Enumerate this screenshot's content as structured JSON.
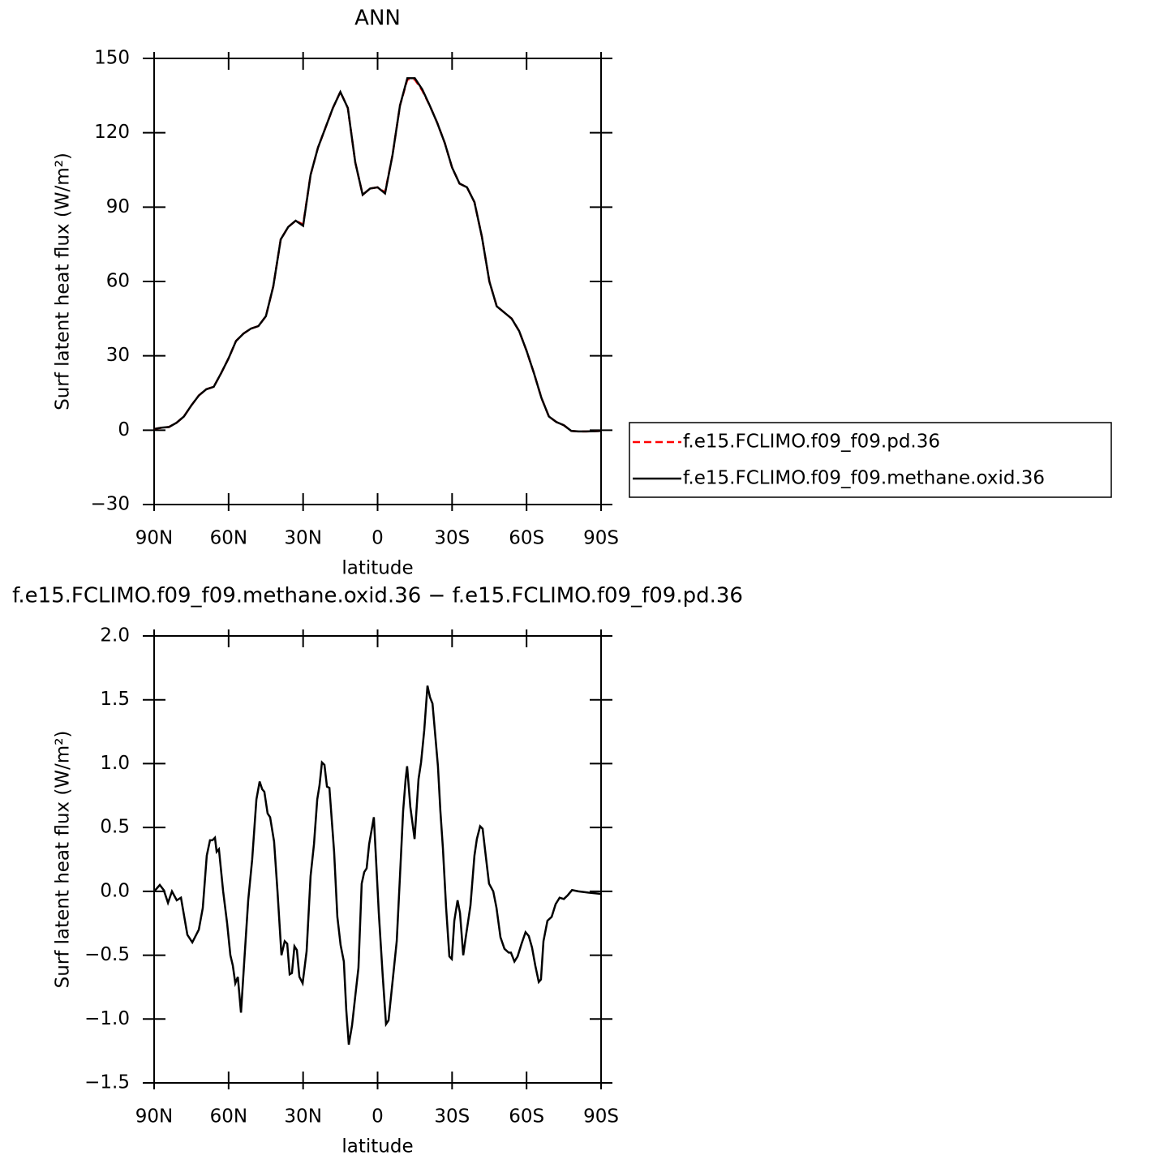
{
  "chart_data": [
    {
      "type": "line",
      "title": "ANN",
      "xlabel": "latitude",
      "ylabel": "Surf latent heat flux (W/m²)",
      "xlim": [
        90,
        -90
      ],
      "xticks": [
        {
          "value": 90,
          "label": "90N"
        },
        {
          "value": 60,
          "label": "60N"
        },
        {
          "value": 30,
          "label": "30N"
        },
        0,
        {
          "value": -30,
          "label": "30S"
        },
        {
          "value": -60,
          "label": "60S"
        },
        {
          "value": -90,
          "label": "90S"
        }
      ],
      "ylim": [
        -30,
        150
      ],
      "yticks": [
        {
          "value": -30,
          "label": "−30"
        },
        0,
        30,
        60,
        90,
        120,
        150
      ],
      "legend": "right",
      "x": [
        90,
        87,
        84,
        81,
        78,
        75,
        72,
        69,
        66,
        63,
        60,
        57,
        54,
        51,
        48,
        45,
        42,
        39,
        36,
        33,
        30,
        27,
        24,
        21,
        18,
        15,
        12,
        9,
        6,
        3,
        0,
        -3,
        -6,
        -9,
        -12,
        -15,
        -18,
        -21,
        -24,
        -27,
        -30,
        -33,
        -36,
        -39,
        -42,
        -45,
        -48,
        -51,
        -54,
        -57,
        -60,
        -63,
        -66,
        -69,
        -72,
        -75,
        -78,
        -81,
        -84,
        -87,
        -90
      ],
      "series": [
        {
          "name": "f.e15.FCLIMO.f09_f09.pd.36",
          "color": "#ff0000",
          "dashed": true,
          "values": [
            0.5,
            1,
            1.3,
            3,
            5.5,
            10,
            14,
            16.5,
            17.5,
            23,
            29,
            36,
            39,
            41,
            42,
            46,
            58,
            77,
            82,
            84.5,
            83,
            103,
            114,
            122,
            130,
            136.5,
            130,
            108,
            95,
            97.5,
            98,
            96,
            111,
            131,
            141.5,
            141.5,
            137,
            131,
            124,
            116,
            106,
            99.5,
            98,
            92,
            78,
            60,
            50,
            47.5,
            45,
            40,
            32,
            23,
            13,
            5.5,
            3.3,
            2,
            -0.3,
            -0.5,
            -0.5,
            -0.4,
            -0.3
          ]
        },
        {
          "name": "f.e15.FCLIMO.f09_f09.methane.oxid.36",
          "color": "#000000",
          "dashed": false,
          "values": [
            0.5,
            1,
            1.3,
            3,
            5.5,
            10,
            14,
            16.5,
            17.5,
            23,
            29,
            36,
            39,
            41,
            42,
            46,
            58,
            77,
            82,
            84.5,
            82.5,
            103,
            114,
            122,
            130,
            136.5,
            130,
            108,
            95,
            97.5,
            98,
            95.5,
            111,
            131,
            142,
            142,
            137.5,
            131,
            124,
            116,
            106,
            99.5,
            98,
            92,
            78,
            60,
            50,
            47.5,
            45,
            40,
            32,
            23,
            13,
            5.5,
            3.3,
            2,
            -0.3,
            -0.5,
            -0.5,
            -0.4,
            -0.3
          ]
        }
      ]
    },
    {
      "type": "line",
      "title": "f.e15.FCLIMO.f09_f09.methane.oxid.36 − f.e15.FCLIMO.f09_f09.pd.36",
      "xlabel": "latitude",
      "ylabel": "Surf latent heat flux (W/m²)",
      "xlim": [
        90,
        -90
      ],
      "xticks": [
        {
          "value": 90,
          "label": "90N"
        },
        {
          "value": 60,
          "label": "60N"
        },
        {
          "value": 30,
          "label": "30N"
        },
        0,
        {
          "value": -30,
          "label": "30S"
        },
        {
          "value": -60,
          "label": "60S"
        },
        {
          "value": -90,
          "label": "90S"
        }
      ],
      "ylim": [
        -1.5,
        2.0
      ],
      "yticks": [
        {
          "value": -1.5,
          "label": "−1.5"
        },
        {
          "value": -1.0,
          "label": "−1.0"
        },
        {
          "value": -0.5,
          "label": "−0.5"
        },
        {
          "value": 0,
          "label": "0.0"
        },
        0.5,
        {
          "value": 1.0,
          "label": "1.0"
        },
        1.5,
        {
          "value": 2.0,
          "label": "2.0"
        }
      ],
      "x": [
        90,
        87.7,
        86.1,
        84.4,
        82.8,
        80.9,
        79.2,
        76.6,
        74.6,
        72.0,
        70.4,
        68.8,
        67.5,
        66.5,
        65.5,
        64.8,
        63.9,
        62.2,
        60.6,
        59.3,
        58.3,
        57.3,
        56.3,
        55.0,
        53.7,
        52.1,
        50.5,
        48.8,
        47.5,
        46.5,
        45.6,
        44.3,
        43.3,
        41.7,
        40.3,
        38.7,
        37.4,
        36.4,
        35.4,
        34.5,
        33.5,
        32.5,
        31.5,
        30.2,
        28.6,
        27.0,
        25.6,
        24.3,
        23.4,
        22.4,
        21.4,
        20.4,
        19.4,
        17.5,
        16.2,
        14.9,
        13.6,
        12.6,
        11.6,
        10.3,
        9.0,
        7.7,
        6.4,
        5.4,
        4.4,
        3.4,
        1.5,
        -0.5,
        -2.1,
        -3.4,
        -4.4,
        -6.0,
        -7.7,
        -9.0,
        -10.3,
        -11.3,
        -11.9,
        -13.2,
        -14.9,
        -16.5,
        -17.5,
        -18.8,
        -20.1,
        -21.1,
        -22.1,
        -24.3,
        -25.3,
        -26.3,
        -27.6,
        -28.9,
        -29.9,
        -30.9,
        -32.2,
        -33.2,
        -34.5,
        -35.5,
        -37.4,
        -39.0,
        -40.0,
        -41.3,
        -42.3,
        -43.6,
        -44.9,
        -46.6,
        -47.9,
        -49.5,
        -51.1,
        -52.8,
        -53.7,
        -55.1,
        -56.4,
        -58.0,
        -59.6,
        -60.9,
        -62.2,
        -63.5,
        -64.9,
        -65.8,
        -66.8,
        -68.4,
        -70.1,
        -71.7,
        -73.3,
        -75.0,
        -76.6,
        -78.3,
        -80.9,
        -84.8,
        -90
      ],
      "series": [
        {
          "name": "difference",
          "color": "#000000",
          "dashed": false,
          "values": [
            0,
            0.05,
            0.01,
            -0.09,
            0,
            -0.07,
            -0.05,
            -0.34,
            -0.4,
            -0.3,
            -0.13,
            0.28,
            0.4,
            0.4,
            0.42,
            0.31,
            0.33,
            0,
            -0.25,
            -0.5,
            -0.58,
            -0.72,
            -0.67,
            -0.95,
            -0.55,
            -0.07,
            0.25,
            0.72,
            0.86,
            0.8,
            0.78,
            0.61,
            0.58,
            0.39,
            0,
            -0.5,
            -0.39,
            -0.41,
            -0.65,
            -0.64,
            -0.43,
            -0.46,
            -0.67,
            -0.72,
            -0.47,
            0.12,
            0.37,
            0.72,
            0.83,
            1.01,
            0.99,
            0.82,
            0.81,
            0.31,
            -0.2,
            -0.42,
            -0.55,
            -0.93,
            -1.2,
            -1.05,
            -0.82,
            -0.6,
            0.06,
            0.15,
            0.18,
            0.37,
            0.58,
            -0.17,
            -0.67,
            -1.04,
            -1.01,
            -0.71,
            -0.39,
            0.12,
            0.63,
            0.88,
            0.98,
            0.66,
            0.41,
            0.88,
            1.01,
            1.26,
            1.61,
            1.52,
            1.47,
            0.98,
            0.63,
            0.34,
            -0.13,
            -0.51,
            -0.53,
            -0.23,
            -0.07,
            -0.17,
            -0.5,
            -0.36,
            -0.11,
            0.28,
            0.41,
            0.51,
            0.49,
            0.27,
            0.06,
            0,
            -0.13,
            -0.36,
            -0.45,
            -0.48,
            -0.48,
            -0.55,
            -0.51,
            -0.41,
            -0.32,
            -0.35,
            -0.44,
            -0.58,
            -0.71,
            -0.69,
            -0.39,
            -0.23,
            -0.2,
            -0.1,
            -0.05,
            -0.06,
            -0.03,
            0.01,
            0,
            -0.01,
            -0.02
          ]
        }
      ]
    }
  ]
}
